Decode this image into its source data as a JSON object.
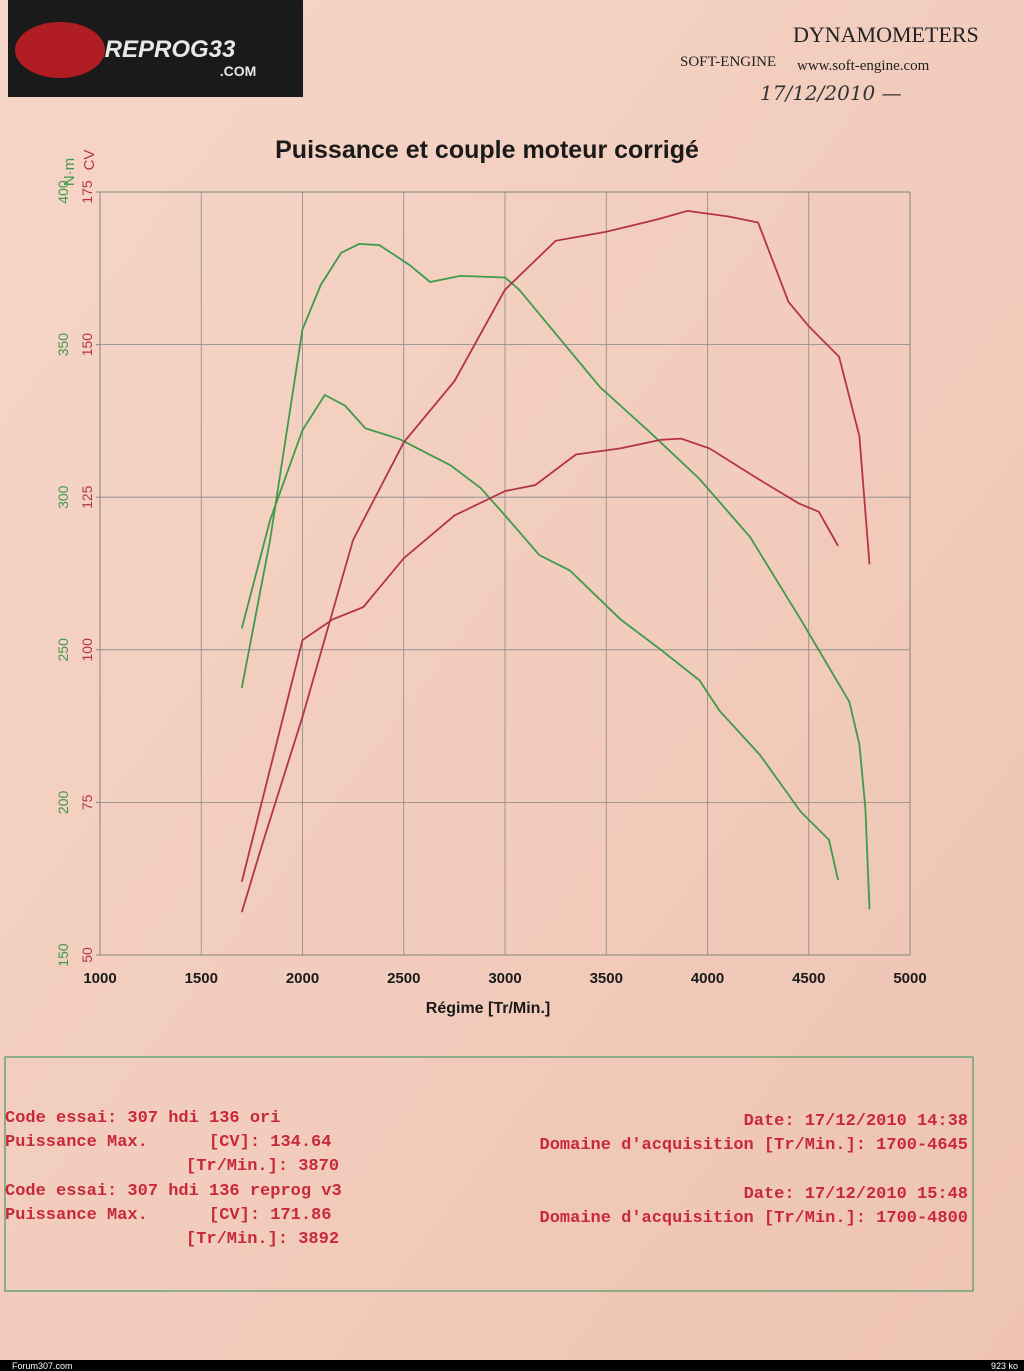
{
  "header": {
    "logo": "REPROG33",
    "logo_sub": ".COM",
    "brand": "SOFT-ENGINE",
    "brand_title": "DYNAMOMETERS",
    "url": "www.soft-engine.com",
    "handwritten_date": "17/12/2010 —"
  },
  "chart_data": {
    "type": "line",
    "title": "Puissance et couple moteur corrigé",
    "xlabel": "Régime [Tr/Min.]",
    "ylabel": "N·m",
    "y2label": "CV",
    "xlim": [
      1000,
      5000
    ],
    "xticks": [
      1000,
      1500,
      2000,
      2500,
      3000,
      3500,
      4000,
      4500,
      5000
    ],
    "ylim": [
      150,
      400
    ],
    "yticks": [
      150,
      200,
      250,
      300,
      350,
      400
    ],
    "y2lim": [
      50,
      175
    ],
    "y2ticks": [
      50,
      75,
      100,
      125,
      150,
      175
    ],
    "grid": true,
    "series": [
      {
        "color": "#3f9a4a",
        "axis": "y",
        "x": [
          1700,
          1840,
          2000,
          2110,
          2210,
          2310,
          2480,
          2730,
          2880,
          3020,
          3170,
          3320,
          3570,
          3770,
          3960,
          4060,
          4260,
          4460,
          4600,
          4645
        ],
        "values": [
          257,
          292.5,
          322,
          333.5,
          330,
          322.6,
          319,
          310.5,
          303,
          292.5,
          281,
          276,
          260,
          250,
          240,
          230,
          215.5,
          197,
          187.7,
          174.5
        ]
      },
      {
        "color": "#3f9a4a",
        "axis": "y",
        "x": [
          1700,
          1840,
          2000,
          2090,
          2190,
          2280,
          2380,
          2530,
          2630,
          2780,
          3000,
          3070,
          3220,
          3470,
          3720,
          3960,
          4210,
          4460,
          4700,
          4750,
          4780,
          4800
        ],
        "values": [
          237.5,
          286,
          355,
          369.5,
          380,
          383,
          382.6,
          376,
          370.5,
          372.5,
          372,
          368,
          356,
          336,
          321,
          306,
          287,
          260,
          233,
          219,
          198,
          165
        ]
      },
      {
        "color": "#b5334a",
        "axis": "y2",
        "x": [
          1700,
          2000,
          2150,
          2300,
          2500,
          2750,
          3000,
          3150,
          3350,
          3570,
          3770,
          3870,
          4010,
          4250,
          4450,
          4550,
          4645
        ],
        "values": [
          62,
          101.6,
          105,
          107,
          115,
          122,
          126,
          127,
          132,
          133,
          134.4,
          134.6,
          133,
          128,
          124,
          122.6,
          117
        ]
      },
      {
        "color": "#b5334a",
        "axis": "y2",
        "x": [
          1700,
          1800,
          2000,
          2250,
          2500,
          2750,
          3000,
          3250,
          3500,
          3750,
          3900,
          4100,
          4250,
          4400,
          4500,
          4650,
          4750,
          4800
        ],
        "values": [
          57,
          68,
          89,
          118,
          134,
          144,
          159,
          167,
          168.5,
          170.5,
          171.9,
          171,
          170,
          157,
          153,
          148,
          135,
          114
        ]
      }
    ]
  },
  "tests": [
    {
      "code": "Code essai: 307 hdi 136 ori",
      "date": "Date: 17/12/2010 14:38",
      "power": "Puissance Max.      [CV]: 134.64",
      "domain": "Domaine d'acquisition [Tr/Min.]: 1700-4645",
      "rpm": "[Tr/Min.]: 3870"
    },
    {
      "code": "Code essai: 307 hdi 136 reprog v3",
      "date": "Date: 17/12/2010 15:48",
      "power": "Puissance Max.      [CV]: 171.86",
      "domain": "Domaine d'acquisition [Tr/Min.]: 1700-4800",
      "rpm": "[Tr/Min.]: 3892"
    }
  ],
  "footer": {
    "site": "Forum307.com",
    "size": "923 ko"
  }
}
